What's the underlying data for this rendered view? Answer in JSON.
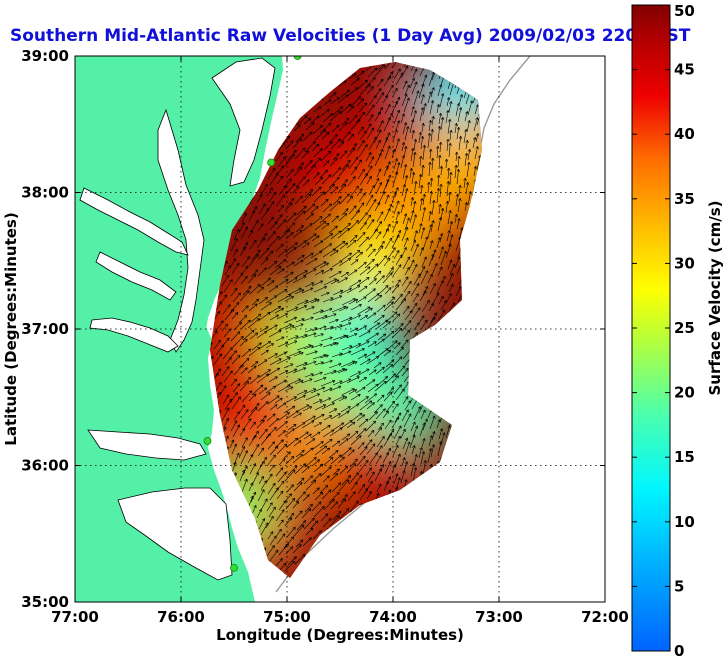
{
  "chart_data": {
    "type": "heatmap",
    "title": "Southern Mid-Atlantic Raw Velocities (1 Day Avg) 2009/02/03 2200 EST",
    "xlabel": "Longitude (Degrees:Minutes)",
    "ylabel": "Latitude (Degrees:Minutes)",
    "colorbar_label": "Surface Velocity (cm/s)",
    "xlim": [
      -77,
      -72
    ],
    "ylim": [
      35,
      39
    ],
    "x_ticks": [
      {
        "value": -77,
        "label": "77:00"
      },
      {
        "value": -76,
        "label": "76:00"
      },
      {
        "value": -75,
        "label": "75:00"
      },
      {
        "value": -74,
        "label": "74:00"
      },
      {
        "value": -73,
        "label": "73:00"
      },
      {
        "value": -72,
        "label": "72:00"
      }
    ],
    "y_ticks": [
      {
        "value": 35,
        "label": "35:00"
      },
      {
        "value": 36,
        "label": "36:00"
      },
      {
        "value": 37,
        "label": "37:00"
      },
      {
        "value": 38,
        "label": "38:00"
      },
      {
        "value": 39,
        "label": "39:00"
      }
    ],
    "colorbar": {
      "range": [
        0,
        50
      ],
      "ticks": [
        0,
        5,
        10,
        15,
        20,
        25,
        30,
        35,
        40,
        45,
        50
      ]
    },
    "grid": true,
    "colors": {
      "land": "#55f0a8",
      "water": "#ffffff",
      "title": "#1010d8",
      "station": "#33dd33"
    },
    "stations": [
      {
        "lon": -74.9,
        "lat": 39.0
      },
      {
        "lon": -75.15,
        "lat": 38.22
      },
      {
        "lon": -75.75,
        "lat": 36.18
      },
      {
        "lon": -75.5,
        "lat": 35.25
      }
    ],
    "speed_field": [
      {
        "lon": -74.0,
        "lat": 38.55,
        "speed": 47
      },
      {
        "lon": -74.55,
        "lat": 38.1,
        "speed": 45
      },
      {
        "lon": -74.0,
        "lat": 37.9,
        "speed": 42
      },
      {
        "lon": -74.2,
        "lat": 37.45,
        "speed": 28
      },
      {
        "lon": -73.7,
        "lat": 37.9,
        "speed": 35
      },
      {
        "lon": -73.3,
        "lat": 38.75,
        "speed": 12
      },
      {
        "lon": -73.25,
        "lat": 38.25,
        "speed": 33
      },
      {
        "lon": -75.5,
        "lat": 37.0,
        "speed": 45
      },
      {
        "lon": -74.8,
        "lat": 36.95,
        "speed": 25
      },
      {
        "lon": -74.3,
        "lat": 36.95,
        "speed": 15
      },
      {
        "lon": -74.5,
        "lat": 36.6,
        "speed": 20
      },
      {
        "lon": -73.9,
        "lat": 36.4,
        "speed": 18
      },
      {
        "lon": -75.35,
        "lat": 36.35,
        "speed": 42
      },
      {
        "lon": -74.6,
        "lat": 36.1,
        "speed": 35
      },
      {
        "lon": -74.2,
        "lat": 35.95,
        "speed": 46
      },
      {
        "lon": -75.2,
        "lat": 35.55,
        "speed": 44
      },
      {
        "lon": -75.5,
        "lat": 35.7,
        "speed": 22
      }
    ]
  }
}
